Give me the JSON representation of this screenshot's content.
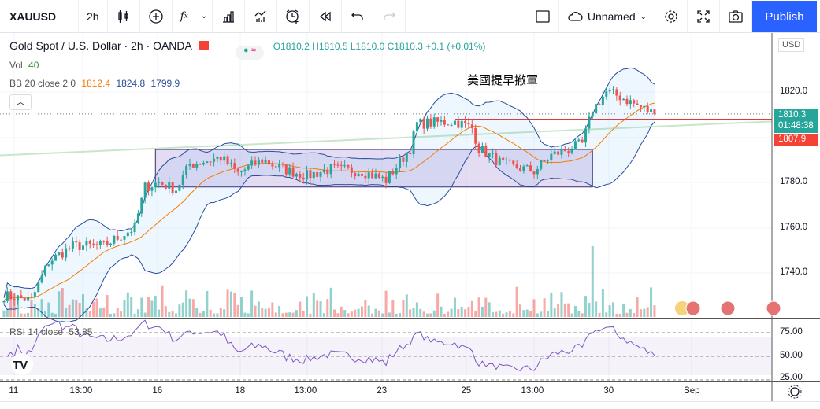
{
  "toolbar": {
    "symbol": "XAUUSD",
    "interval": "2h",
    "layout_name": "Unnamed",
    "publish": "Publish"
  },
  "legend": {
    "title": "Gold Spot / U.S. Dollar · 2h · OANDA",
    "o": "O1810.2",
    "h": "H1810.5",
    "l": "L1810.0",
    "c": "C1810.3",
    "change": "+0.1 (+0.01%)",
    "vol_label": "Vol",
    "vol_value": "40",
    "bb_label": "BB 20 close 2 0",
    "bb_basis": "1812.4",
    "bb_upper": "1824.8",
    "bb_lower": "1799.9"
  },
  "annotation": "美國提早撤軍",
  "price_axis": {
    "currency": "USD",
    "ticks": [
      "1820.0",
      "1780.0",
      "1760.0",
      "1740.0"
    ],
    "current_price": "1810.3",
    "countdown": "01:48:38",
    "level_price": "1807.9"
  },
  "rsi": {
    "label": "RSI 14 close",
    "value": "53.85",
    "ticks": [
      "75.00",
      "50.00",
      "25.00"
    ]
  },
  "time_axis": [
    "11",
    "13:00",
    "16",
    "18",
    "13:00",
    "23",
    "25",
    "13:00",
    "30",
    "Sep"
  ],
  "colors": {
    "up": "#26a69a",
    "down": "#ef5350",
    "accent": "#2962ff",
    "bb_band": "#2a4d9b",
    "bb_basis": "#f57c00",
    "box": "#9575cd"
  },
  "chart_data": {
    "type": "candlestick",
    "bar_count": 190,
    "price_path": [
      [
        0,
        1730
      ],
      [
        8,
        1728
      ],
      [
        13,
        1745
      ],
      [
        20,
        1752
      ],
      [
        29,
        1752
      ],
      [
        38,
        1760
      ],
      [
        41,
        1778
      ],
      [
        45,
        1780
      ],
      [
        50,
        1777
      ],
      [
        54,
        1788
      ],
      [
        63,
        1791
      ],
      [
        68,
        1784
      ],
      [
        75,
        1790
      ],
      [
        81,
        1786
      ],
      [
        88,
        1783
      ],
      [
        95,
        1786
      ],
      [
        104,
        1785
      ],
      [
        111,
        1781
      ],
      [
        118,
        1795
      ],
      [
        120,
        1806
      ],
      [
        131,
        1807
      ],
      [
        136,
        1804
      ],
      [
        138,
        1795
      ],
      [
        145,
        1788
      ],
      [
        154,
        1785
      ],
      [
        159,
        1792
      ],
      [
        168,
        1797
      ],
      [
        171,
        1812
      ],
      [
        175,
        1820
      ],
      [
        179,
        1818
      ],
      [
        184,
        1814
      ],
      [
        189,
        1810.3
      ]
    ],
    "ylim": [
      1725,
      1830
    ],
    "rectangle": {
      "from_bar": 44,
      "to_bar": 171,
      "top": 1794.6,
      "bottom": 1778
    },
    "horizontal_level": {
      "from_bar": 131,
      "price": 1807.9
    },
    "trendline": {
      "start": 1792,
      "end": 1807
    }
  }
}
